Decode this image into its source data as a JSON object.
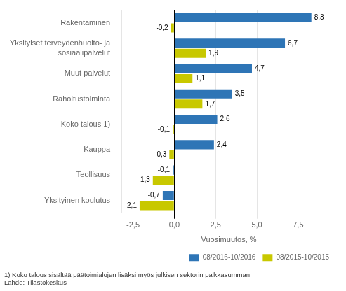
{
  "chart_data": {
    "type": "bar",
    "orientation": "horizontal",
    "categories": [
      "Rakentaminen",
      "Yksityiset terveydenhuolto- ja\nsosiaalipalvelut",
      "Muut palvelut",
      "Rahoitustoiminta",
      "Koko talous 1)",
      "Kauppa",
      "Teollisuus",
      "Yksityinen koulutus"
    ],
    "series": [
      {
        "name": "08/2016-10/2016",
        "color": "#2E75B6",
        "values": [
          8.3,
          6.7,
          4.7,
          3.5,
          2.6,
          2.4,
          -0.1,
          -0.7
        ],
        "value_labels": [
          "8,3",
          "6,7",
          "4,7",
          "3,5",
          "2,6",
          "2,4",
          "-0,1",
          "-0,7"
        ]
      },
      {
        "name": "08/2015-10/2015",
        "color": "#C8C800",
        "values": [
          -0.2,
          1.9,
          1.1,
          1.7,
          -0.1,
          -0.3,
          -1.3,
          -2.1
        ],
        "value_labels": [
          "-0,2",
          "1,9",
          "1,1",
          "1,7",
          "-0,1",
          "-0,3",
          "-1,3",
          "-2,1"
        ]
      }
    ],
    "xlabel": "Vuosimuutos, %",
    "xlim": [
      -3.2,
      9.8
    ],
    "xticks": [
      {
        "value": -2.5,
        "label": "-2,5"
      },
      {
        "value": 0.0,
        "label": "0,0"
      },
      {
        "value": 2.5,
        "label": "2,5"
      },
      {
        "value": 5.0,
        "label": "5,0"
      },
      {
        "value": 7.5,
        "label": "7,5"
      }
    ],
    "grid": true,
    "legend": "lower right",
    "data_labels": true,
    "annotations": [
      "1) Koko talous sisältää päätoimialojen lisäksi myös julkisen sektorin palkkasumman",
      "Lähde: Tilastokeskus"
    ]
  }
}
